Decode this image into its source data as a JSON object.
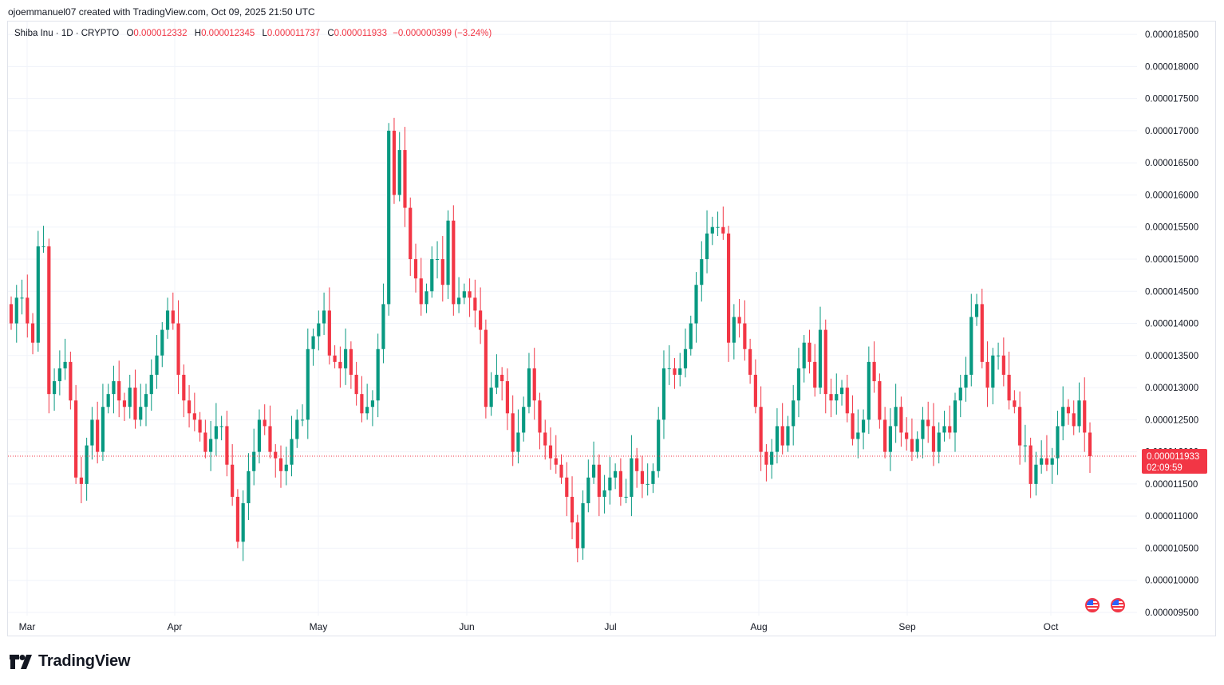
{
  "credit": "ojoemmanuel07 created with TradingView.com, Oct 09, 2025 21:50 UTC",
  "legend": {
    "symbol": "Shiba Inu · 1D · CRYPTO",
    "open_label": "O",
    "open": "0.000012332",
    "high_label": "H",
    "high": "0.000012345",
    "low_label": "L",
    "low": "0.000011737",
    "close_label": "C",
    "close": "0.000011933",
    "change": "−0.000000399 (−3.24%)"
  },
  "price_tag": {
    "price": "0.000011933",
    "countdown": "02:09:59"
  },
  "logo": {
    "text": "TradingView",
    "icon": "tradingview-logo-icon"
  },
  "flags": [
    "us-flag-icon",
    "us-flag-icon"
  ],
  "colors": {
    "up": "#089981",
    "down": "#f23645",
    "grid": "#f0f3fa",
    "text": "#131722"
  },
  "chart_data": {
    "type": "candlestick",
    "title": "",
    "xlabel": "",
    "ylabel": "",
    "ylim": [
      9.2e-06,
      1.86e-05
    ],
    "grid": true,
    "x_ticks": [
      "Mar",
      "Apr",
      "May",
      "Jun",
      "Jul",
      "Aug",
      "Sep",
      "Oct"
    ],
    "y_ticks": [
      "0.000018500",
      "0.000018000",
      "0.000017500",
      "0.000017000",
      "0.000016500",
      "0.000016000",
      "0.000015500",
      "0.000015000",
      "0.000014500",
      "0.000014000",
      "0.000013500",
      "0.000013000",
      "0.000012500",
      "0.000012000",
      "0.000011500",
      "0.000011000",
      "0.000010500",
      "0.000010000",
      "0.000009500"
    ],
    "y_tick_values": [
      18.5,
      18.0,
      17.5,
      17.0,
      16.5,
      16.0,
      15.5,
      15.0,
      14.5,
      14.0,
      13.5,
      13.0,
      12.5,
      12.0,
      11.5,
      11.0,
      10.5,
      10.0,
      9.5
    ],
    "price_scale": "1e-6",
    "last_price": 11.933,
    "candle_closes": [
      14.0,
      14.4,
      14.4,
      14.0,
      13.7,
      15.2,
      15.2,
      12.9,
      13.1,
      13.3,
      13.4,
      12.8,
      11.6,
      11.5,
      12.1,
      12.5,
      12.0,
      12.7,
      12.9,
      13.1,
      12.8,
      12.7,
      13.0,
      12.5,
      12.7,
      12.9,
      13.2,
      13.5,
      13.9,
      14.2,
      14.0,
      13.2,
      12.8,
      12.6,
      12.5,
      12.3,
      12.0,
      12.2,
      12.4,
      12.4,
      11.8,
      11.3,
      10.6,
      11.2,
      11.7,
      12.0,
      12.5,
      12.4,
      12.0,
      11.9,
      11.7,
      11.8,
      12.2,
      12.5,
      12.5,
      13.6,
      13.8,
      14.0,
      14.2,
      13.5,
      13.4,
      13.3,
      13.6,
      13.2,
      12.9,
      12.6,
      12.7,
      12.8,
      13.6,
      14.3,
      17.0,
      16.0,
      16.7,
      15.8,
      15.0,
      14.7,
      14.3,
      14.5,
      15.0,
      15.0,
      14.6,
      15.6,
      14.3,
      14.4,
      14.5,
      14.4,
      14.2,
      13.9,
      12.7,
      13.0,
      13.2,
      13.1,
      12.6,
      12.0,
      12.3,
      12.7,
      13.3,
      12.8,
      12.3,
      12.1,
      11.9,
      11.8,
      11.6,
      11.3,
      10.9,
      10.5,
      11.2,
      11.6,
      11.8,
      11.3,
      11.4,
      11.6,
      11.7,
      11.3,
      11.3,
      11.9,
      11.7,
      11.5,
      11.5,
      11.7,
      12.5,
      13.3,
      13.3,
      13.2,
      13.3,
      13.6,
      14.0,
      14.6,
      15.0,
      15.4,
      15.5,
      15.5,
      15.4,
      13.7,
      14.1,
      14.0,
      13.6,
      13.2,
      12.7,
      12.0,
      11.8,
      12.0,
      12.4,
      12.1,
      12.4,
      12.8,
      13.3,
      13.7,
      13.4,
      13.0,
      13.9,
      12.9,
      12.8,
      12.9,
      13.0,
      12.6,
      12.2,
      12.3,
      12.5,
      13.4,
      13.1,
      12.5,
      12.0,
      12.4,
      12.7,
      12.3,
      12.2,
      12.0,
      12.2,
      12.5,
      12.4,
      12.0,
      12.3,
      12.4,
      12.3,
      12.8,
      13.0,
      13.2,
      14.1,
      14.3,
      13.4,
      13.0,
      13.5,
      13.5,
      13.2,
      12.8,
      12.7,
      12.1,
      12.1,
      11.5,
      11.8,
      11.9,
      11.8,
      11.9,
      12.4,
      12.7,
      12.6,
      12.4,
      12.8,
      12.3,
      11.933
    ]
  }
}
